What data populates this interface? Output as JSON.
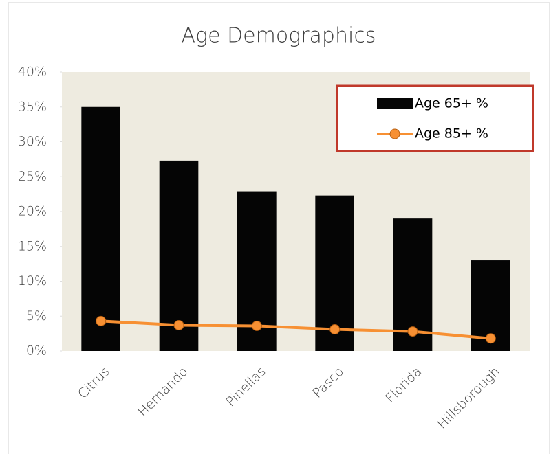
{
  "chart_data": {
    "type": "bar",
    "title": "Age Demographics",
    "categories": [
      "Citrus",
      "Hernando",
      "Pinellas",
      "Pasco",
      "Florida",
      "Hillsborough"
    ],
    "series": [
      {
        "name": "Age 65+ %",
        "type": "bar",
        "color": "#050505",
        "values": [
          35.0,
          27.3,
          22.9,
          22.3,
          19.0,
          13.0
        ]
      },
      {
        "name": "Age 85+ %",
        "type": "line",
        "color": "#f79033",
        "values": [
          4.3,
          3.7,
          3.6,
          3.1,
          2.8,
          1.8
        ]
      }
    ],
    "ylim": [
      0,
      40
    ],
    "yticks": [
      {
        "value": 0,
        "label": "0%"
      },
      {
        "value": 5,
        "label": "5%"
      },
      {
        "value": 10,
        "label": "10%"
      },
      {
        "value": 15,
        "label": "15%"
      },
      {
        "value": 20,
        "label": "20%"
      },
      {
        "value": 25,
        "label": "25%"
      },
      {
        "value": 30,
        "label": "30%"
      },
      {
        "value": 35,
        "label": "35%"
      },
      {
        "value": 40,
        "label": "40%"
      }
    ],
    "legend": "upper right",
    "legend_border": "#c0392b",
    "plot_background": "#eeebe0"
  }
}
